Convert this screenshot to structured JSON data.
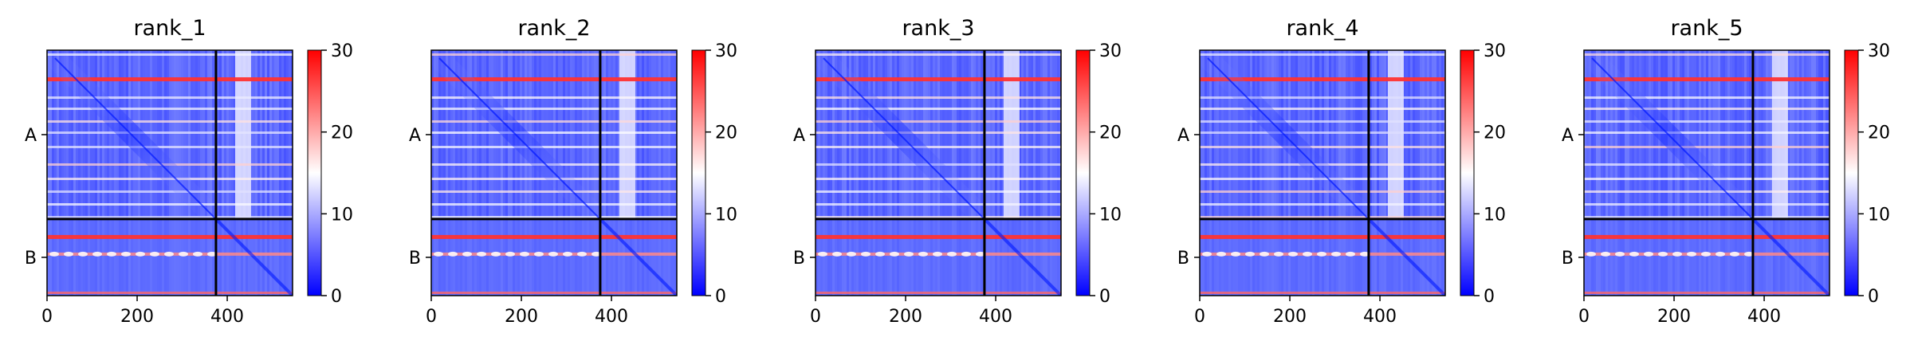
{
  "chart_data": [
    {
      "type": "heatmap",
      "title": "rank_1",
      "x_ticks": [
        0,
        200,
        400
      ],
      "xlim": [
        0,
        545
      ],
      "y_ticks": [
        "A",
        "B"
      ],
      "colorbar": {
        "ticks": [
          0,
          10,
          20,
          30
        ],
        "range": [
          0,
          30
        ],
        "colormap": "bwr"
      },
      "chain_boundary": 375,
      "total_length": 545
    },
    {
      "type": "heatmap",
      "title": "rank_2",
      "x_ticks": [
        0,
        200,
        400
      ],
      "xlim": [
        0,
        545
      ],
      "y_ticks": [
        "A",
        "B"
      ],
      "colorbar": {
        "ticks": [
          0,
          10,
          20,
          30
        ],
        "range": [
          0,
          30
        ],
        "colormap": "bwr"
      },
      "chain_boundary": 375,
      "total_length": 545
    },
    {
      "type": "heatmap",
      "title": "rank_3",
      "x_ticks": [
        0,
        200,
        400
      ],
      "xlim": [
        0,
        545
      ],
      "y_ticks": [
        "A",
        "B"
      ],
      "colorbar": {
        "ticks": [
          0,
          10,
          20,
          30
        ],
        "range": [
          0,
          30
        ],
        "colormap": "bwr"
      },
      "chain_boundary": 375,
      "total_length": 545
    },
    {
      "type": "heatmap",
      "title": "rank_4",
      "x_ticks": [
        0,
        200,
        400
      ],
      "xlim": [
        0,
        545
      ],
      "y_ticks": [
        "A",
        "B"
      ],
      "colorbar": {
        "ticks": [
          0,
          10,
          20,
          30
        ],
        "range": [
          0,
          30
        ],
        "colormap": "bwr"
      },
      "chain_boundary": 375,
      "total_length": 545
    },
    {
      "type": "heatmap",
      "title": "rank_5",
      "x_ticks": [
        0,
        200,
        400
      ],
      "xlim": [
        0,
        545
      ],
      "y_ticks": [
        "A",
        "B"
      ],
      "colorbar": {
        "ticks": [
          0,
          10,
          20,
          30
        ],
        "range": [
          0,
          30
        ],
        "colormap": "bwr"
      },
      "chain_boundary": 375,
      "total_length": 545
    }
  ],
  "colors": {
    "low": "#0000ff",
    "mid": "#ffffff",
    "high": "#ff0000"
  }
}
